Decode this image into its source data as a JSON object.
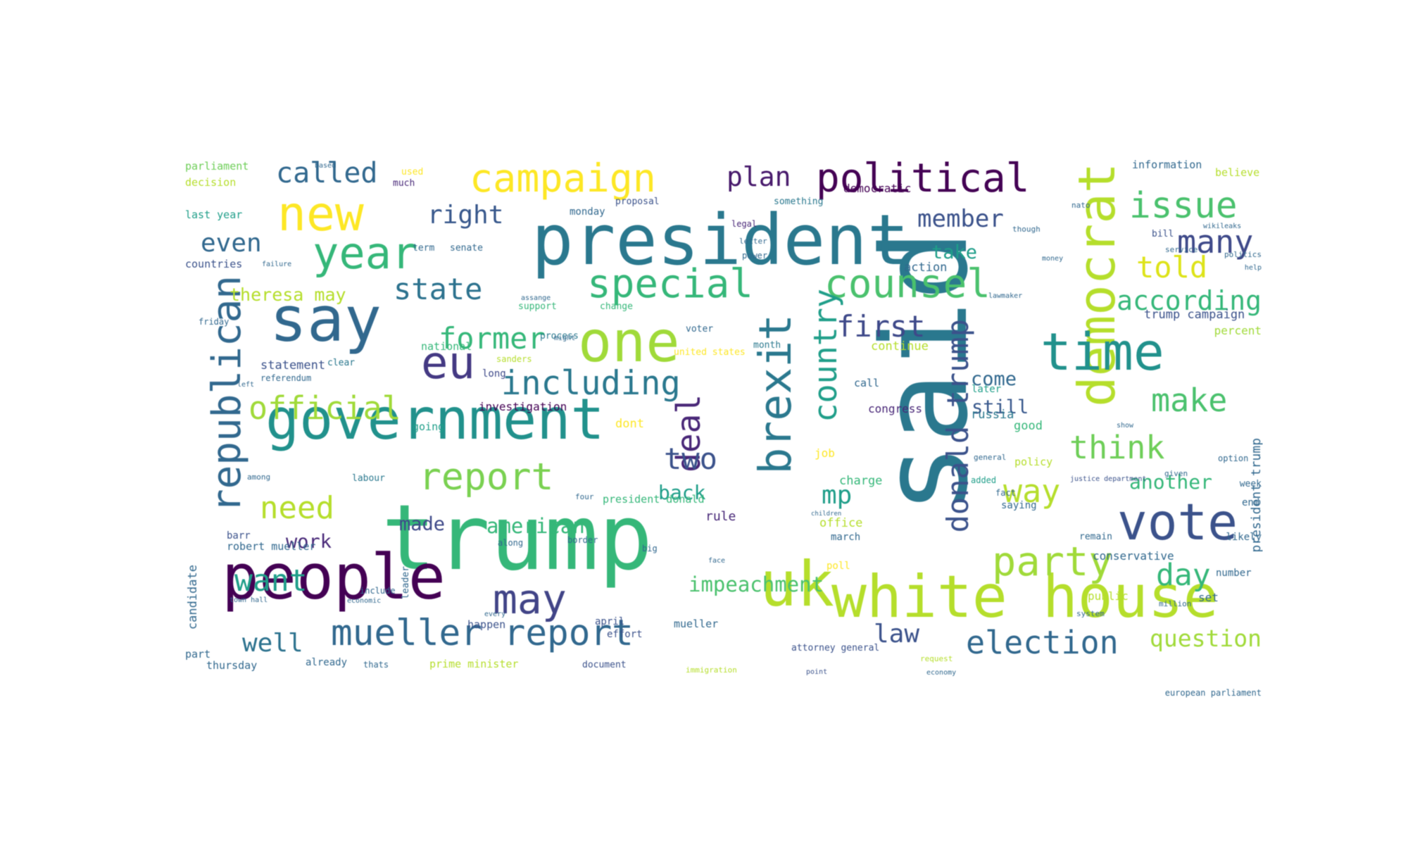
{
  "word_cloud": {
    "words": [
      {
        "text": "said",
        "color": "#2a788e",
        "vertical": true
      },
      {
        "text": "trump",
        "color": "#35b779",
        "vertical": false
      },
      {
        "text": "president",
        "color": "#2a788e",
        "vertical": false
      },
      {
        "text": "white house",
        "color": "#b5de2b",
        "vertical": false
      },
      {
        "text": "people",
        "color": "#440154",
        "vertical": false
      },
      {
        "text": "government",
        "color": "#21918c",
        "vertical": false
      },
      {
        "text": "say",
        "color": "#31688e",
        "vertical": false
      },
      {
        "text": "uk",
        "color": "#b5de2b",
        "vertical": false
      },
      {
        "text": "democrat",
        "color": "#b5de2b",
        "vertical": true
      },
      {
        "text": "brexit",
        "color": "#2a788e",
        "vertical": true
      },
      {
        "text": "one",
        "color": "#a0da39",
        "vertical": false
      },
      {
        "text": "time",
        "color": "#21918c",
        "vertical": false
      },
      {
        "text": "republican",
        "color": "#31688e",
        "vertical": true
      },
      {
        "text": "vote",
        "color": "#3b528b",
        "vertical": false
      },
      {
        "text": "campaign",
        "color": "#fde725",
        "vertical": false
      },
      {
        "text": "new",
        "color": "#fde725",
        "vertical": false
      },
      {
        "text": "year",
        "color": "#35b779",
        "vertical": false
      },
      {
        "text": "special",
        "color": "#35b779",
        "vertical": false
      },
      {
        "text": "counsel",
        "color": "#4ac16d",
        "vertical": false
      },
      {
        "text": "political",
        "color": "#440154",
        "vertical": false
      },
      {
        "text": "country",
        "color": "#1f9e89",
        "vertical": true
      },
      {
        "text": "eu",
        "color": "#443983",
        "vertical": false
      },
      {
        "text": "deal",
        "color": "#482677",
        "vertical": true
      },
      {
        "text": "mueller report",
        "color": "#31688e",
        "vertical": false
      },
      {
        "text": "party",
        "color": "#a0da39",
        "vertical": false
      },
      {
        "text": "report",
        "color": "#7ad151",
        "vertical": false
      },
      {
        "text": "including",
        "color": "#2a788e",
        "vertical": false
      },
      {
        "text": "official",
        "color": "#a0da39",
        "vertical": false
      },
      {
        "text": "may",
        "color": "#414487",
        "vertical": false
      },
      {
        "text": "issue",
        "color": "#4ac16d",
        "vertical": false
      },
      {
        "text": "election",
        "color": "#31688e",
        "vertical": false
      },
      {
        "text": "think",
        "color": "#6ece58",
        "vertical": false
      },
      {
        "text": "make",
        "color": "#4ac16d",
        "vertical": false
      },
      {
        "text": "donald trump",
        "color": "#3b528b",
        "vertical": true
      },
      {
        "text": "way",
        "color": "#b5de2b",
        "vertical": false
      },
      {
        "text": "want",
        "color": "#1f9e89",
        "vertical": false
      },
      {
        "text": "need",
        "color": "#b5de2b",
        "vertical": false
      },
      {
        "text": "former",
        "color": "#35b779",
        "vertical": false
      },
      {
        "text": "state",
        "color": "#2c728e",
        "vertical": false
      },
      {
        "text": "many",
        "color": "#3e4989",
        "vertical": false
      },
      {
        "text": "told",
        "color": "#dde318",
        "vertical": false
      },
      {
        "text": "according",
        "color": "#35b779",
        "vertical": false
      },
      {
        "text": "first",
        "color": "#3e4989",
        "vertical": false
      },
      {
        "text": "called",
        "color": "#31688e",
        "vertical": false
      },
      {
        "text": "plan",
        "color": "#481a6c",
        "vertical": false
      },
      {
        "text": "right",
        "color": "#38588c",
        "vertical": false
      },
      {
        "text": "member",
        "color": "#3b528b",
        "vertical": false
      },
      {
        "text": "even",
        "color": "#31688e",
        "vertical": false
      },
      {
        "text": "two",
        "color": "#3b528b",
        "vertical": false
      },
      {
        "text": "day",
        "color": "#35b779",
        "vertical": false
      },
      {
        "text": "well",
        "color": "#2c728e",
        "vertical": false
      },
      {
        "text": "law",
        "color": "#3b528b",
        "vertical": false
      },
      {
        "text": "mp",
        "color": "#1f9e89",
        "vertical": false
      },
      {
        "text": "question",
        "color": "#a0da39",
        "vertical": false
      },
      {
        "text": "theresa may",
        "color": "#b5de2b",
        "vertical": false
      },
      {
        "text": "impeachment",
        "color": "#4ac16d",
        "vertical": false
      },
      {
        "text": "american",
        "color": "#35b779",
        "vertical": false
      },
      {
        "text": "made",
        "color": "#3e4989",
        "vertical": false
      },
      {
        "text": "work",
        "color": "#482878",
        "vertical": false
      },
      {
        "text": "another",
        "color": "#35b779",
        "vertical": false
      },
      {
        "text": "still",
        "color": "#38588c",
        "vertical": false
      },
      {
        "text": "take",
        "color": "#1f9e89",
        "vertical": false
      },
      {
        "text": "come",
        "color": "#31688e",
        "vertical": false
      },
      {
        "text": "back",
        "color": "#1f9e89",
        "vertical": false
      },
      {
        "text": "parliament",
        "color": "#6ece58",
        "vertical": false
      },
      {
        "text": "decision",
        "color": "#b5de2b",
        "vertical": false
      },
      {
        "text": "last year",
        "color": "#1f9e89",
        "vertical": false
      },
      {
        "text": "countries",
        "color": "#3b528b",
        "vertical": false
      },
      {
        "text": "term",
        "color": "#31688e",
        "vertical": false
      },
      {
        "text": "senate",
        "color": "#31688e",
        "vertical": false
      },
      {
        "text": "much",
        "color": "#482878",
        "vertical": false
      },
      {
        "text": "used",
        "color": "#fde725",
        "vertical": false
      },
      {
        "text": "proposal",
        "color": "#3b528b",
        "vertical": false
      },
      {
        "text": "monday",
        "color": "#31688e",
        "vertical": false
      },
      {
        "text": "democratic",
        "color": "#440154",
        "vertical": false
      },
      {
        "text": "something",
        "color": "#2a788e",
        "vertical": false
      },
      {
        "text": "legal",
        "color": "#482677",
        "vertical": false
      },
      {
        "text": "action",
        "color": "#31688e",
        "vertical": false
      },
      {
        "text": "information",
        "color": "#31688e",
        "vertical": false
      },
      {
        "text": "believe",
        "color": "#b5de2b",
        "vertical": false
      },
      {
        "text": "bill",
        "color": "#3b528b",
        "vertical": false
      },
      {
        "text": "trump campaign",
        "color": "#3b528b",
        "vertical": false
      },
      {
        "text": "percent",
        "color": "#a0da39",
        "vertical": false
      },
      {
        "text": "support",
        "color": "#35b779",
        "vertical": false
      },
      {
        "text": "change",
        "color": "#35b779",
        "vertical": false
      },
      {
        "text": "voter",
        "color": "#31688e",
        "vertical": false
      },
      {
        "text": "month",
        "color": "#2a788e",
        "vertical": false
      },
      {
        "text": "continue",
        "color": "#b5de2b",
        "vertical": false
      },
      {
        "text": "later",
        "color": "#1f9e89",
        "vertical": false
      },
      {
        "text": "russia",
        "color": "#2a788e",
        "vertical": false
      },
      {
        "text": "good",
        "color": "#35b779",
        "vertical": false
      },
      {
        "text": "investigation",
        "color": "#440154",
        "vertical": false
      },
      {
        "text": "dont",
        "color": "#fde725",
        "vertical": false
      },
      {
        "text": "going",
        "color": "#1f9e89",
        "vertical": false
      },
      {
        "text": "national",
        "color": "#35b779",
        "vertical": false
      },
      {
        "text": "long",
        "color": "#3e4989",
        "vertical": false
      },
      {
        "text": "process",
        "color": "#2a788e",
        "vertical": false
      },
      {
        "text": "united states",
        "color": "#fde725",
        "vertical": false
      },
      {
        "text": "statement",
        "color": "#3b528b",
        "vertical": false
      },
      {
        "text": "referendum",
        "color": "#31688e",
        "vertical": false
      },
      {
        "text": "clear",
        "color": "#2a788e",
        "vertical": false
      },
      {
        "text": "call",
        "color": "#31688e",
        "vertical": false
      },
      {
        "text": "congress",
        "color": "#482677",
        "vertical": false
      },
      {
        "text": "job",
        "color": "#fde725",
        "vertical": false
      },
      {
        "text": "charge",
        "color": "#35b779",
        "vertical": false
      },
      {
        "text": "policy",
        "color": "#b5de2b",
        "vertical": false
      },
      {
        "text": "added",
        "color": "#1f9e89",
        "vertical": false
      },
      {
        "text": "president donald",
        "color": "#35b779",
        "vertical": false
      },
      {
        "text": "robert mueller",
        "color": "#31688e",
        "vertical": false
      },
      {
        "text": "barr",
        "color": "#3b528b",
        "vertical": false
      },
      {
        "text": "labour",
        "color": "#2a788e",
        "vertical": false
      },
      {
        "text": "rule",
        "color": "#482878",
        "vertical": false
      },
      {
        "text": "office",
        "color": "#b5de2b",
        "vertical": false
      },
      {
        "text": "march",
        "color": "#31688e",
        "vertical": false
      },
      {
        "text": "poll",
        "color": "#fde725",
        "vertical": false
      },
      {
        "text": "mueller",
        "color": "#31688e",
        "vertical": false
      },
      {
        "text": "effort",
        "color": "#3b528b",
        "vertical": false
      },
      {
        "text": "april",
        "color": "#3b528b",
        "vertical": false
      },
      {
        "text": "happen",
        "color": "#3b528b",
        "vertical": false
      },
      {
        "text": "candidate",
        "color": "#31688e",
        "vertical": true
      },
      {
        "text": "part",
        "color": "#31688e",
        "vertical": false
      },
      {
        "text": "thursday",
        "color": "#31688e",
        "vertical": false
      },
      {
        "text": "already",
        "color": "#31688e",
        "vertical": false
      },
      {
        "text": "thats",
        "color": "#31688e",
        "vertical": false
      },
      {
        "text": "prime minister",
        "color": "#b5de2b",
        "vertical": false
      },
      {
        "text": "document",
        "color": "#3b528b",
        "vertical": false
      },
      {
        "text": "attorney general",
        "color": "#3b528b",
        "vertical": false
      },
      {
        "text": "conservative",
        "color": "#31688e",
        "vertical": false
      },
      {
        "text": "number",
        "color": "#31688e",
        "vertical": false
      },
      {
        "text": "public",
        "color": "#b5de2b",
        "vertical": false
      },
      {
        "text": "saying",
        "color": "#31688e",
        "vertical": false
      },
      {
        "text": "remain",
        "color": "#31688e",
        "vertical": false
      },
      {
        "text": "likely",
        "color": "#31688e",
        "vertical": false
      },
      {
        "text": "justice department",
        "color": "#3b528b",
        "vertical": false
      },
      {
        "text": "president trump",
        "color": "#31688e",
        "vertical": true
      },
      {
        "text": "end",
        "color": "#31688e",
        "vertical": false
      },
      {
        "text": "week",
        "color": "#31688e",
        "vertical": false
      },
      {
        "text": "option",
        "color": "#31688e",
        "vertical": false
      },
      {
        "text": "show",
        "color": "#31688e",
        "vertical": false
      },
      {
        "text": "set",
        "color": "#31688e",
        "vertical": false
      },
      {
        "text": "leader",
        "color": "#31688e",
        "vertical": true
      },
      {
        "text": "european parliament",
        "color": "#31688e",
        "vertical": false
      },
      {
        "text": "immigration",
        "color": "#b5de2b",
        "vertical": false
      },
      {
        "text": "request",
        "color": "#b5de2b",
        "vertical": false
      },
      {
        "text": "economy",
        "color": "#31688e",
        "vertical": false
      },
      {
        "text": "point",
        "color": "#3b528b",
        "vertical": false
      },
      {
        "text": "million",
        "color": "#31688e",
        "vertical": false
      },
      {
        "text": "include",
        "color": "#31688e",
        "vertical": false
      },
      {
        "text": "town hall",
        "color": "#31688e",
        "vertical": false
      },
      {
        "text": "economic",
        "color": "#31688e",
        "vertical": false
      },
      {
        "text": "every",
        "color": "#31688e",
        "vertical": false
      },
      {
        "text": "failure",
        "color": "#31688e",
        "vertical": false
      },
      {
        "text": "friday",
        "color": "#31688e",
        "vertical": false
      },
      {
        "text": "might",
        "color": "#31688e",
        "vertical": false
      },
      {
        "text": "assange",
        "color": "#31688e",
        "vertical": false
      },
      {
        "text": "sanders",
        "color": "#b5de2b",
        "vertical": false
      },
      {
        "text": "left",
        "color": "#31688e",
        "vertical": false
      },
      {
        "text": "among",
        "color": "#31688e",
        "vertical": false
      },
      {
        "text": "based",
        "color": "#31688e",
        "vertical": false
      },
      {
        "text": "service",
        "color": "#31688e",
        "vertical": false
      },
      {
        "text": "wikileaks",
        "color": "#31688e",
        "vertical": false
      },
      {
        "text": "politics",
        "color": "#31688e",
        "vertical": false
      },
      {
        "text": "help",
        "color": "#31688e",
        "vertical": false
      },
      {
        "text": "given",
        "color": "#31688e",
        "vertical": false
      },
      {
        "text": "children",
        "color": "#31688e",
        "vertical": false
      },
      {
        "text": "general",
        "color": "#31688e",
        "vertical": false
      },
      {
        "text": "power",
        "color": "#31688e",
        "vertical": false
      },
      {
        "text": "letter",
        "color": "#31688e",
        "vertical": false
      },
      {
        "text": "nato",
        "color": "#31688e",
        "vertical": false
      },
      {
        "text": "fact",
        "color": "#31688e",
        "vertical": false
      },
      {
        "text": "along",
        "color": "#31688e",
        "vertical": false
      },
      {
        "text": "border",
        "color": "#31688e",
        "vertical": false
      },
      {
        "text": "big",
        "color": "#31688e",
        "vertical": false
      },
      {
        "text": "four",
        "color": "#31688e",
        "vertical": false
      },
      {
        "text": "system",
        "color": "#31688e",
        "vertical": false
      },
      {
        "text": "face",
        "color": "#31688e",
        "vertical": false
      },
      {
        "text": "though",
        "color": "#31688e",
        "vertical": false
      },
      {
        "text": "money",
        "color": "#31688e",
        "vertical": false
      },
      {
        "text": "lawmaker",
        "color": "#31688e",
        "vertical": false
      },
      {
        "text": "evidence",
        "color": "#31688e",
        "vertical": false
      },
      {
        "text": "secretary",
        "color": "#31688e",
        "vertical": false
      }
    ]
  }
}
